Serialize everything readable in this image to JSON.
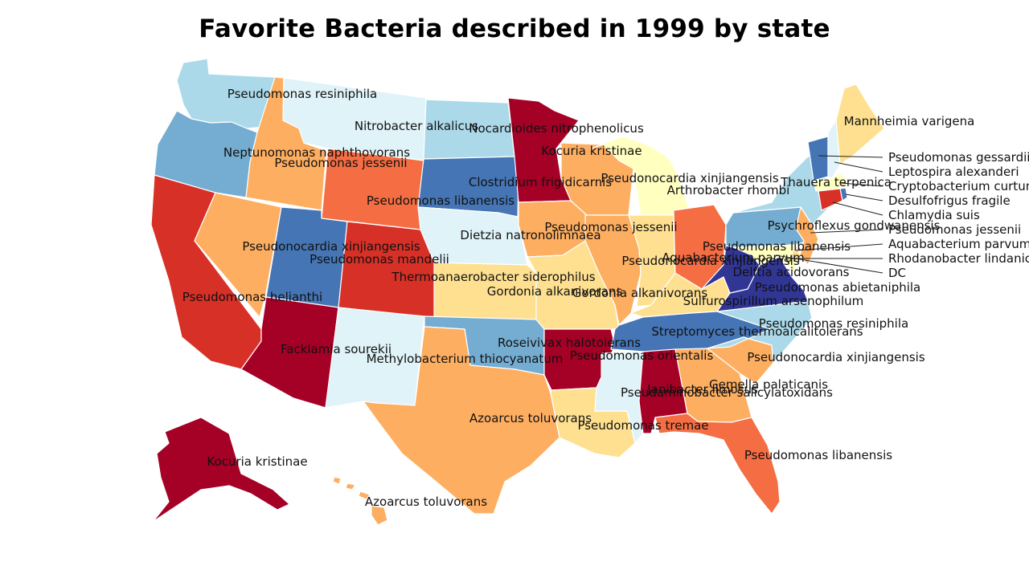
{
  "title": "Favorite Bacteria described in 1999 by state",
  "colors": {
    "darkred": "#a50026",
    "red": "#d73027",
    "orangered": "#f46d43",
    "orange": "#fdae61",
    "lightorange": "#fee090",
    "pale": "#ffffbf",
    "palegreen": "#e0f3f8",
    "lightblue": "#abd9e9",
    "skyblue": "#74add1",
    "blue": "#4575b4",
    "darkblue": "#313695"
  },
  "states": [
    {
      "id": "WA",
      "label": "Pseudomonas resiniphila",
      "color": "lightblue"
    },
    {
      "id": "OR",
      "label": "Neptunomonas naphthovorans",
      "color": "skyblue"
    },
    {
      "id": "CA",
      "label": "Pseudomonas helianthi",
      "color": "red"
    },
    {
      "id": "ID",
      "label": "Pseudomonas jessenii",
      "color": "orange"
    },
    {
      "id": "NV",
      "label": "Pseudonocardia xinjiangensis",
      "color": "orange"
    },
    {
      "id": "MT",
      "label": "Nitrobacter alkalicus",
      "color": "palegreen"
    },
    {
      "id": "WY",
      "label": "Pseudomonas libanensis",
      "color": "orangered"
    },
    {
      "id": "UT",
      "label": "Pseudomonas mandelii",
      "color": "blue"
    },
    {
      "id": "AZ",
      "label": "Facklamia sourekii",
      "color": "darkred"
    },
    {
      "id": "CO",
      "label": "Thermoanaerobacter siderophilus",
      "color": "red"
    },
    {
      "id": "NM",
      "label": "Methylobacterium thiocyanatum",
      "color": "palegreen"
    },
    {
      "id": "ND",
      "label": "Nocardioides nitrophenolicus",
      "color": "lightblue"
    },
    {
      "id": "SD",
      "label": "Clostridium frigidicarnis",
      "color": "blue"
    },
    {
      "id": "NE",
      "label": "Dietzia natronolimnaea",
      "color": "palegreen"
    },
    {
      "id": "KS",
      "label": "Gordonia alkanivorans",
      "color": "lightorange"
    },
    {
      "id": "OK",
      "label": "Roseivivax halotolerans",
      "color": "skyblue"
    },
    {
      "id": "TX",
      "label": "Azoarcus toluvorans",
      "color": "orange"
    },
    {
      "id": "MN",
      "label": "Kocuria kristinae",
      "color": "darkred"
    },
    {
      "id": "IA",
      "label": "Pseudomonas jessenii",
      "color": "orange"
    },
    {
      "id": "MO",
      "label": "Gordonia alkanivorans",
      "color": "lightorange"
    },
    {
      "id": "AR",
      "label": "Pseudomonas orientalis",
      "color": "darkred"
    },
    {
      "id": "LA",
      "label": "Pseudomonas tremae",
      "color": "lightorange"
    },
    {
      "id": "WI",
      "label": "Pseudonocardia xinjiangensis",
      "color": "orange"
    },
    {
      "id": "IL",
      "label": "Pseudonocardia xinjiangensis",
      "color": "orange"
    },
    {
      "id": "MI",
      "label": "Arthrobacter rhombi",
      "color": "pale"
    },
    {
      "id": "IN",
      "label": "Aquabacterium parvum",
      "color": "lightorange"
    },
    {
      "id": "OH",
      "label": "Pseudomonas libanensis",
      "color": "orangered"
    },
    {
      "id": "KY",
      "label": "Sulfurospirillum arsenophilum",
      "color": "lightorange"
    },
    {
      "id": "TN",
      "label": "Streptomyces thermoalcalitolerans",
      "color": "blue"
    },
    {
      "id": "MS",
      "label": "Pseudaminobacter salicylatoxidans",
      "color": "palegreen"
    },
    {
      "id": "AL",
      "label": "Janibacter limosus",
      "color": "darkred"
    },
    {
      "id": "GA",
      "label": "Gemella palaticanis",
      "color": "orange"
    },
    {
      "id": "FL",
      "label": "Pseudomonas libanensis",
      "color": "orangered"
    },
    {
      "id": "SC",
      "label": "Pseudonocardia xinjiangensis",
      "color": "orange"
    },
    {
      "id": "NC",
      "label": "Pseudomonas resiniphila",
      "color": "lightblue"
    },
    {
      "id": "VA",
      "label": "Pseudomonas abietaniphila",
      "color": "darkblue"
    },
    {
      "id": "WV",
      "label": "Delftia acidovorans",
      "color": "darkblue"
    },
    {
      "id": "PA",
      "label": "Psychroflexus gondwanensis",
      "color": "skyblue"
    },
    {
      "id": "NY",
      "label": "Thauera terpenica",
      "color": "lightblue"
    },
    {
      "id": "ME",
      "label": "Mannheimia varigena",
      "color": "lightorange"
    },
    {
      "id": "AK",
      "label": "Kocuria kristinae",
      "color": "darkred"
    },
    {
      "id": "HI",
      "label": "Azoarcus toluvorans",
      "color": "orange"
    },
    {
      "id": "NJ",
      "label": "Pseudomonas jessenii",
      "color": "orange"
    },
    {
      "id": "VT",
      "label": "Pseudomonas gessardii",
      "color": "blue"
    },
    {
      "id": "NH",
      "label": "Leptospira alexanderi",
      "color": "palegreen"
    },
    {
      "id": "MA",
      "label": "Cryptobacterium curtum",
      "color": "pale"
    },
    {
      "id": "RI",
      "label": "Desulfofrigus fragile",
      "color": "blue"
    },
    {
      "id": "CT",
      "label": "Chlamydia suis",
      "color": "red"
    },
    {
      "id": "DE",
      "label": "Aquabacterium parvum",
      "color": "lightorange"
    },
    {
      "id": "MD",
      "label": "Rhodanobacter lindaniclasticus",
      "color": "pale"
    },
    {
      "id": "DC",
      "label": "DC",
      "color": "lightorange"
    }
  ],
  "callouts": [
    "Pseudomonas gessardii",
    "Leptospira alexanderi",
    "Cryptobacterium curtum",
    "Desulfofrigus fragile",
    "Chlamydia suis",
    "Pseudomonas jessenii",
    "Aquabacterium parvum",
    "Rhodanobacter lindaniclasticus",
    "DC"
  ]
}
